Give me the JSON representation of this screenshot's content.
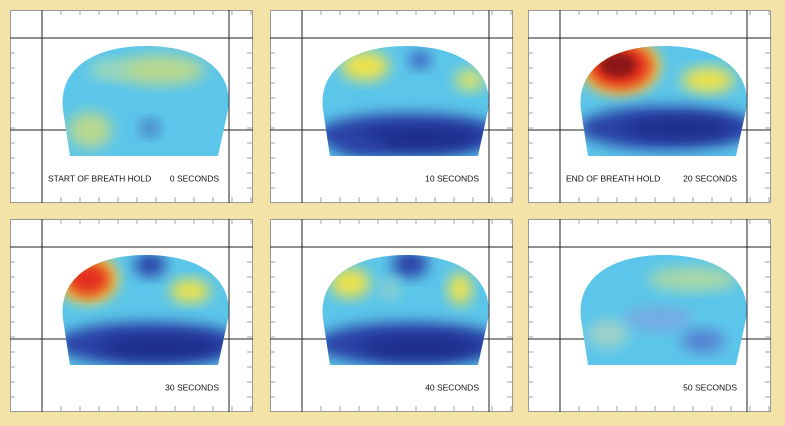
{
  "panels": [
    {
      "label": "START OF BREATH HOLD",
      "time": "0 SECONDS"
    },
    {
      "time": "10 SECONDS"
    },
    {
      "label": "END OF BREATH HOLD",
      "time": "20 SECONDS"
    },
    {
      "time": "30 SECONDS"
    },
    {
      "time": "40 SECONDS"
    },
    {
      "time": "50 SECONDS"
    }
  ]
}
